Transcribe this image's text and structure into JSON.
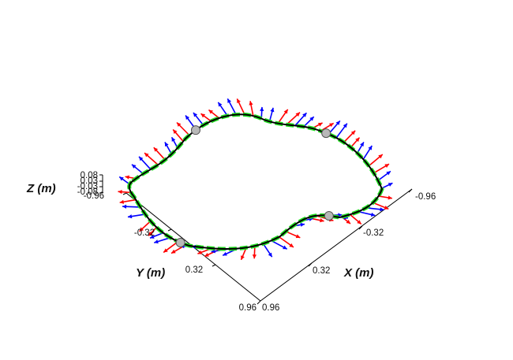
{
  "chart_data": {
    "type": "3d-trajectory",
    "title": "",
    "axes": {
      "x": {
        "label": "X (m)",
        "ticks": [
          "0.96",
          "0.32",
          "-0.32",
          "-0.96"
        ]
      },
      "y": {
        "label": "Y (m)",
        "ticks": [
          "0.96",
          "0.32",
          "-0.32",
          "-0.96"
        ]
      },
      "z": {
        "label": "Z (m)",
        "ticks": [
          "0.08",
          "0.03",
          "-0.03",
          "-0.08"
        ]
      }
    },
    "colors": {
      "path": "#000000",
      "reference": "#22dd22",
      "tangent_arrows": "#ff0000",
      "normal_arrows": "#0000ff",
      "waypoints": "#b8b8b8",
      "axes": "#000000"
    },
    "waypoints_count": 4
  }
}
